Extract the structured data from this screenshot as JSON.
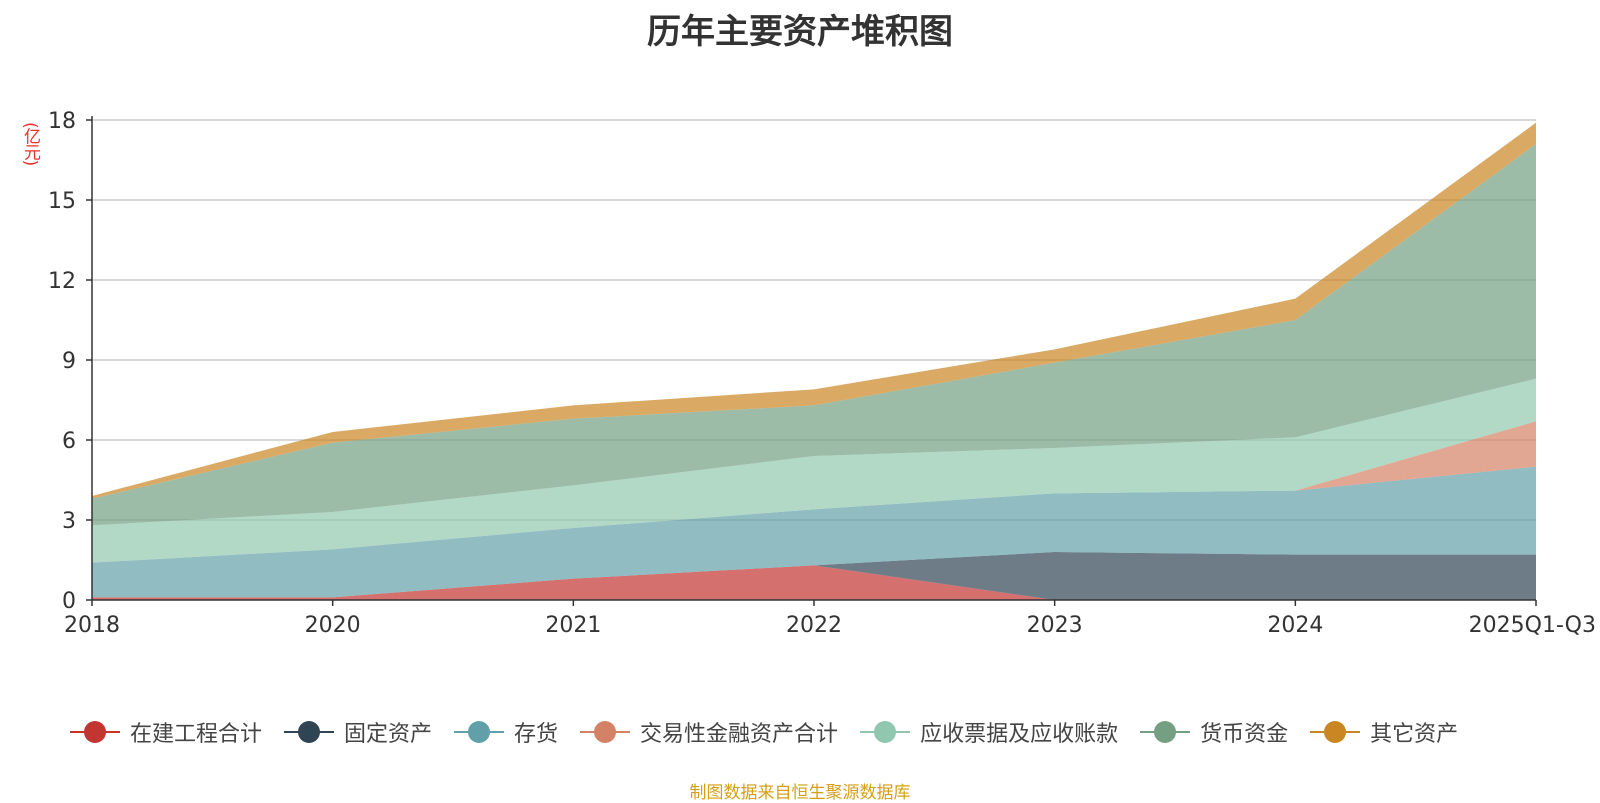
{
  "chart_data": {
    "type": "area",
    "stacked": true,
    "title": "历年主要资产堆积图",
    "unit": "(亿元)",
    "categories": [
      "2018",
      "2020",
      "2021",
      "2022",
      "2023",
      "2024",
      "2025Q1-Q3"
    ],
    "ylim": [
      0,
      18
    ],
    "yticks": [
      0,
      3,
      6,
      9,
      12,
      15,
      18
    ],
    "grid": true,
    "legend_position": "bottom",
    "series": [
      {
        "name": "在建工程合计",
        "color": "#c23531",
        "values": [
          0.1,
          0.1,
          0.8,
          1.3,
          0.0,
          0.0,
          0.0
        ]
      },
      {
        "name": "固定资产",
        "color": "#2f4554",
        "values": [
          0.0,
          0.0,
          0.0,
          0.0,
          1.8,
          1.7,
          1.7
        ]
      },
      {
        "name": "存货",
        "color": "#61a0a8",
        "values": [
          1.3,
          1.8,
          1.9,
          2.1,
          2.2,
          2.4,
          3.3
        ]
      },
      {
        "name": "交易性金融资产合计",
        "color": "#d48265",
        "values": [
          0.0,
          0.0,
          0.0,
          0.0,
          0.0,
          0.0,
          1.7
        ]
      },
      {
        "name": "应收票据及应收账款",
        "color": "#91c7ae",
        "values": [
          1.4,
          1.4,
          1.6,
          2.0,
          1.7,
          2.0,
          1.6
        ]
      },
      {
        "name": "货币资金",
        "color": "#749f83",
        "values": [
          1.0,
          2.6,
          2.5,
          1.9,
          3.2,
          4.4,
          8.8
        ]
      },
      {
        "name": "其它资产",
        "color": "#ca8622",
        "values": [
          0.1,
          0.4,
          0.5,
          0.6,
          0.5,
          0.8,
          0.8
        ]
      }
    ]
  },
  "source": "制图数据来自恒生聚源数据库"
}
